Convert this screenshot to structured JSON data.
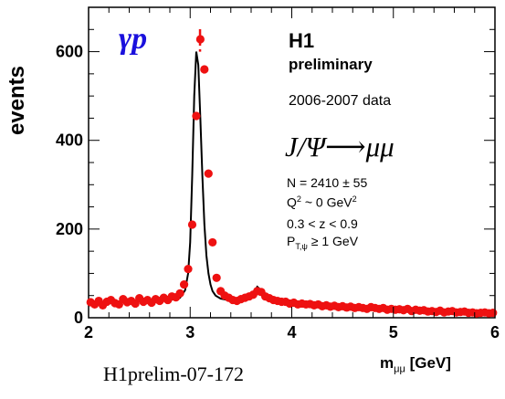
{
  "chart_data": {
    "type": "scatter",
    "xlabel_main": "m",
    "xlabel_sub": "μμ",
    "xlabel_unit": "[GeV]",
    "ylabel": "events",
    "xlim": [
      2,
      6
    ],
    "ylim": [
      0,
      700
    ],
    "xticks": [
      2,
      3,
      4,
      5,
      6
    ],
    "yticks": [
      0,
      200,
      400,
      600
    ],
    "colors": {
      "points": "#ee1111",
      "fit": "#000000",
      "gamma_p": "#1a10dd",
      "axes": "#000000"
    },
    "series": [
      {
        "kind": "points",
        "x": [
          2.02,
          2.06,
          2.1,
          2.14,
          2.18,
          2.22,
          2.26,
          2.3,
          2.34,
          2.38,
          2.42,
          2.46,
          2.5,
          2.54,
          2.58,
          2.62,
          2.66,
          2.7,
          2.74,
          2.78,
          2.82,
          2.86,
          2.9,
          2.94,
          2.98,
          3.02,
          3.06,
          3.1,
          3.14,
          3.18,
          3.22,
          3.26,
          3.3,
          3.34,
          3.38,
          3.42,
          3.46,
          3.5,
          3.54,
          3.58,
          3.62,
          3.66,
          3.7,
          3.74,
          3.78,
          3.82,
          3.86,
          3.9,
          3.94,
          3.98,
          4.02,
          4.06,
          4.1,
          4.14,
          4.18,
          4.22,
          4.26,
          4.3,
          4.34,
          4.38,
          4.42,
          4.46,
          4.5,
          4.54,
          4.58,
          4.62,
          4.66,
          4.7,
          4.74,
          4.78,
          4.82,
          4.86,
          4.9,
          4.94,
          4.98,
          5.02,
          5.06,
          5.1,
          5.14,
          5.18,
          5.22,
          5.26,
          5.3,
          5.34,
          5.38,
          5.42,
          5.46,
          5.5,
          5.54,
          5.58,
          5.62,
          5.66,
          5.7,
          5.74,
          5.78,
          5.82,
          5.86,
          5.9,
          5.94,
          5.98
        ],
        "y": [
          35,
          30,
          38,
          28,
          36,
          40,
          33,
          30,
          42,
          35,
          38,
          32,
          44,
          36,
          40,
          34,
          42,
          38,
          45,
          40,
          48,
          46,
          55,
          75,
          110,
          210,
          455,
          628,
          560,
          325,
          170,
          90,
          60,
          50,
          45,
          40,
          38,
          42,
          45,
          48,
          52,
          60,
          58,
          48,
          44,
          40,
          38,
          36,
          36,
          32,
          34,
          30,
          32,
          30,
          31,
          28,
          30,
          26,
          28,
          25,
          27,
          24,
          26,
          23,
          25,
          22,
          24,
          22,
          20,
          24,
          22,
          20,
          22,
          18,
          20,
          18,
          19,
          17,
          20,
          15,
          18,
          16,
          17,
          14,
          15,
          13,
          16,
          12,
          14,
          15,
          12,
          13,
          14,
          11,
          12,
          10,
          11,
          12,
          10,
          11
        ]
      },
      {
        "kind": "fit",
        "x": [
          2.0,
          2.2,
          2.4,
          2.6,
          2.7,
          2.8,
          2.85,
          2.9,
          2.95,
          2.98,
          3.0,
          3.02,
          3.04,
          3.06,
          3.08,
          3.1,
          3.12,
          3.14,
          3.16,
          3.18,
          3.2,
          3.22,
          3.25,
          3.3,
          3.35,
          3.4,
          3.5,
          3.55,
          3.6,
          3.63,
          3.66,
          3.68,
          3.7,
          3.73,
          3.76,
          3.8,
          3.9,
          4.0,
          4.2,
          4.4,
          4.6,
          4.8,
          5.0,
          5.2,
          5.4,
          5.6,
          5.8,
          6.0
        ],
        "y": [
          32,
          34,
          36,
          38,
          39,
          40,
          42,
          45,
          62,
          100,
          170,
          320,
          500,
          600,
          570,
          450,
          320,
          210,
          140,
          100,
          75,
          60,
          50,
          43,
          41,
          40,
          40,
          42,
          48,
          58,
          70,
          66,
          55,
          45,
          40,
          38,
          36,
          35,
          33,
          30,
          27,
          24,
          21,
          19,
          17,
          15,
          13,
          12
        ]
      }
    ],
    "dashed_marker_x": 3.097
  },
  "annotations": {
    "gamma_p": "γp",
    "experiment": "H1",
    "status": "preliminary",
    "dataset": "2006-2007 data",
    "decay": "J/Ψ⟶μμ",
    "n_events": "N = 2410 ± 55",
    "q2_main": "Q",
    "q2_sup": "2",
    "q2_rest": " ~ 0 GeV",
    "q2_unit_sup": "2",
    "z_range": "0.3 < z < 0.9",
    "pt_main": "P",
    "pt_sub": "T,ψ",
    "pt_rest": " ≥ 1 GeV"
  },
  "footer": {
    "label": "H1prelim-07-172"
  }
}
